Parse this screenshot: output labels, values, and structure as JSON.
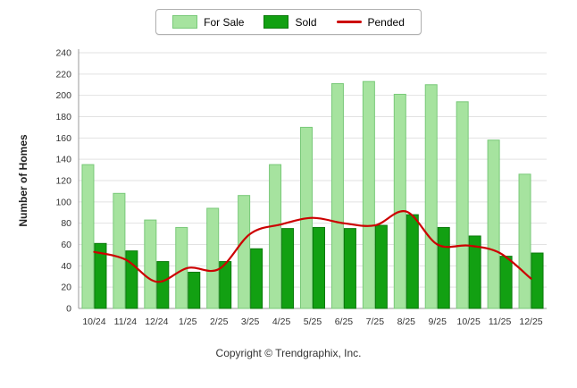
{
  "chart_data": {
    "type": "bar",
    "categories": [
      "10/24",
      "11/24",
      "12/24",
      "1/25",
      "2/25",
      "3/25",
      "4/25",
      "5/25",
      "6/25",
      "7/25",
      "8/25",
      "9/25",
      "10/25",
      "11/25",
      "12/25"
    ],
    "series": [
      {
        "name": "For Sale",
        "type": "bar",
        "color": "#a6e39f",
        "border": "#79c979",
        "values": [
          135,
          108,
          83,
          76,
          94,
          106,
          135,
          170,
          211,
          213,
          201,
          210,
          194,
          158,
          126
        ]
      },
      {
        "name": "Sold",
        "type": "bar",
        "color": "#12a012",
        "border": "#0c7a0c",
        "values": [
          61,
          54,
          44,
          34,
          44,
          56,
          75,
          76,
          75,
          78,
          88,
          76,
          68,
          49,
          52
        ]
      },
      {
        "name": "Pended",
        "type": "line",
        "color": "#cc0000",
        "values": [
          53,
          46,
          25,
          38,
          37,
          70,
          79,
          85,
          80,
          78,
          91,
          60,
          59,
          52,
          28
        ]
      }
    ],
    "title": "",
    "xlabel": "",
    "ylabel": "Number of Homes",
    "ylim": [
      0,
      240
    ],
    "ytick_step": 20,
    "grid": true,
    "legend_position": "top",
    "grid_color": "#e2e2e2",
    "axis_color": "#9a9a9a",
    "tick_label_color": "#333333"
  },
  "footer": {
    "copyright": "Copyright © Trendgraphix, Inc."
  }
}
